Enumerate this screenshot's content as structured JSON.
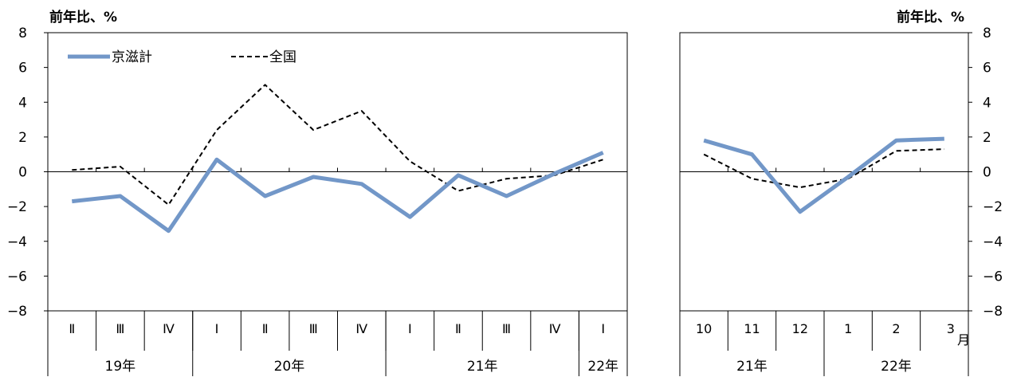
{
  "chart_data": [
    {
      "type": "line",
      "unit_label": "前年比、%",
      "ylim": [
        -8,
        8
      ],
      "y_ticks": [
        8,
        6,
        4,
        2,
        0,
        -2,
        -4,
        -6,
        -8
      ],
      "categories": [
        "Ⅱ",
        "Ⅲ",
        "Ⅳ",
        "Ⅰ",
        "Ⅱ",
        "Ⅲ",
        "Ⅳ",
        "Ⅰ",
        "Ⅱ",
        "Ⅲ",
        "Ⅳ",
        "Ⅰ"
      ],
      "year_groups": [
        {
          "label": "19年",
          "span": 3
        },
        {
          "label": "20年",
          "span": 4
        },
        {
          "label": "21年",
          "span": 4
        },
        {
          "label": "22年",
          "span": 1
        }
      ],
      "legend": {
        "position": "top-left"
      },
      "series": [
        {
          "name": "京滋計",
          "color": "#7297c8",
          "style": "solid",
          "values": [
            -1.7,
            -1.4,
            -3.4,
            0.7,
            -1.4,
            -0.3,
            -0.7,
            -2.6,
            -0.2,
            -1.4,
            -0.1,
            1.1
          ]
        },
        {
          "name": "全国",
          "color": "#000000",
          "style": "dashed",
          "values": [
            0.1,
            0.3,
            -1.9,
            2.4,
            5.0,
            2.4,
            3.5,
            0.6,
            -1.1,
            -0.4,
            -0.2,
            0.7
          ]
        }
      ]
    },
    {
      "type": "line",
      "unit_label": "前年比、%",
      "ylim": [
        -8,
        8
      ],
      "y_ticks": [
        8,
        6,
        4,
        2,
        0,
        -2,
        -4,
        -6,
        -8
      ],
      "categories": [
        "10",
        "11",
        "12",
        "1",
        "2",
        "3"
      ],
      "month_suffix": "月",
      "year_groups": [
        {
          "label": "21年",
          "span": 3
        },
        {
          "label": "22年",
          "span": 3
        }
      ],
      "series": [
        {
          "name": "京滋計",
          "color": "#7297c8",
          "style": "solid",
          "values": [
            1.8,
            1.0,
            -2.3,
            -0.3,
            1.8,
            1.9
          ]
        },
        {
          "name": "全国",
          "color": "#000000",
          "style": "dashed",
          "values": [
            1.0,
            -0.4,
            -0.9,
            -0.4,
            1.2,
            1.3
          ]
        }
      ]
    }
  ]
}
